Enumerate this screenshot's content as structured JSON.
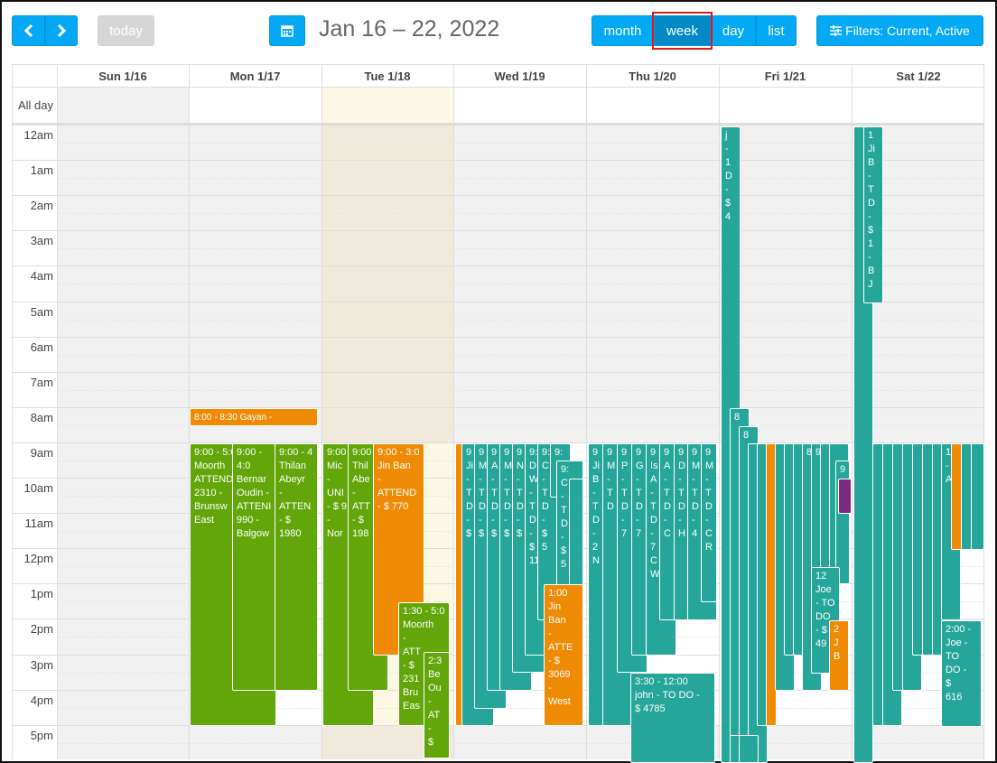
{
  "toolbar": {
    "prev_icon": "chevron-left-icon",
    "next_icon": "chevron-right-icon",
    "today_label": "today",
    "calendar_icon": "calendar-icon",
    "title": "Jan 16 – 22, 2022",
    "views": [
      "month",
      "week",
      "day",
      "list"
    ],
    "active_view": "week",
    "filters_icon": "sliders-icon",
    "filters_label": "Filters: Current, Active"
  },
  "days": [
    "Sun 1/16",
    "Mon 1/17",
    "Tue 1/18",
    "Wed 1/19",
    "Thu 1/20",
    "Fri 1/21",
    "Sat 1/22"
  ],
  "today_day": "Tue 1/18",
  "allday_label": "All day",
  "times": [
    "12am",
    "1am",
    "2am",
    "3am",
    "4am",
    "5am",
    "6am",
    "7am",
    "8am",
    "9am",
    "10am",
    "11am",
    "12pm",
    "1pm",
    "2pm",
    "3pm",
    "4pm",
    "5pm"
  ],
  "colors": {
    "green": "#62a60a",
    "orange": "#ef8a05",
    "teal": "#26a69a",
    "purple": "#7b2a7e",
    "blue": "#03a9f4"
  },
  "events": [
    {
      "text": "8:00 - 8:30   Gayan -"
    },
    {
      "text": "9:00 - 5:0\nMoorth\nATTEND\n2310 -\nBrunsw\nEast"
    },
    {
      "text": "9:00 - 4:0\nBernar\nOudin -\nATTENI\n990 -\nBalgow"
    },
    {
      "text": "9:00 - 4\nThilan\nAbeyr\n-\nATTEN\n- $\n1980"
    },
    {
      "text": "9:00\nMic\n-\nUNI\n- $ 9\n-\nNor"
    },
    {
      "text": "9:00\nThil\nAbe\n-\nATT\n- $\n198"
    },
    {
      "text": "9:00 - 3:0\nJin Ban\n-\nATTEND\n- $ 770"
    },
    {
      "text": "1:30 - 5:0\nMoorth\n-\nATT\n- $\n231\nBru\nEas"
    },
    {
      "text": "2:3\nBe\nOu\n-\nAT\n-\n$"
    },
    {
      "text": "9:"
    },
    {
      "text": "9\nJi\n-\nT\nD\n-\n$"
    },
    {
      "text": "9\nM\n-\nT\nD\n-\n$"
    },
    {
      "text": "9\nA\n-\nT\nD\n-\n$"
    },
    {
      "text": "9\nM\n-\nT\nD\n-\n$"
    },
    {
      "text": "9\nN\n-\nT\nD\n-\n$"
    },
    {
      "text": "9:0\nD\nW\n-\nT\nD\n-\n$\n11"
    },
    {
      "text": "9:\nC\n-\nT\nD\n-\n$\n5"
    },
    {
      "text": "1:00\nJin\nBan\n-\nATTE\n- $\n3069\n-\nWest"
    },
    {
      "text": "9\nJi\nB\n-\nT\nD\n-\n2\nN"
    },
    {
      "text": "9\nM\n-\nT\nD"
    },
    {
      "text": "9\nP\n-\nT\nD\n-\n7"
    },
    {
      "text": "9\nG\n-\nT\nD\n-\n7"
    },
    {
      "text": "9\nIs\nA\n-\nT\nD\n-\n7\nC\nW"
    },
    {
      "text": "9\nA\n-\nT\nD\n-\nC"
    },
    {
      "text": "9\nD\n-\nT\nD\n-\nH"
    },
    {
      "text": "9\nM\n-\nT\nD\n-\n4"
    },
    {
      "text": "9\nM\n-\nT\nD\n-\nC\nR"
    },
    {
      "text": "3:30 - 12:00\njohn - TO DO -\n$ 4785"
    },
    {
      "text": "j\n-\n1\nD\n-\n$\n4"
    },
    {
      "text": "8"
    },
    {
      "text": "8"
    },
    {
      "text": "9"
    },
    {
      "text": "12\nJoe\n- TO\nDO\n- $\n49"
    },
    {
      "text": "2\nJ\nB"
    },
    {
      "text": "1\nJi\nB\n-\nT\nD\n-\n$\n1\n-\nB\nJ"
    },
    {
      "text": "1\n-\nA"
    },
    {
      "text": "2:00 -\nJoe -\nTO\nDO -\n$\n616"
    }
  ]
}
